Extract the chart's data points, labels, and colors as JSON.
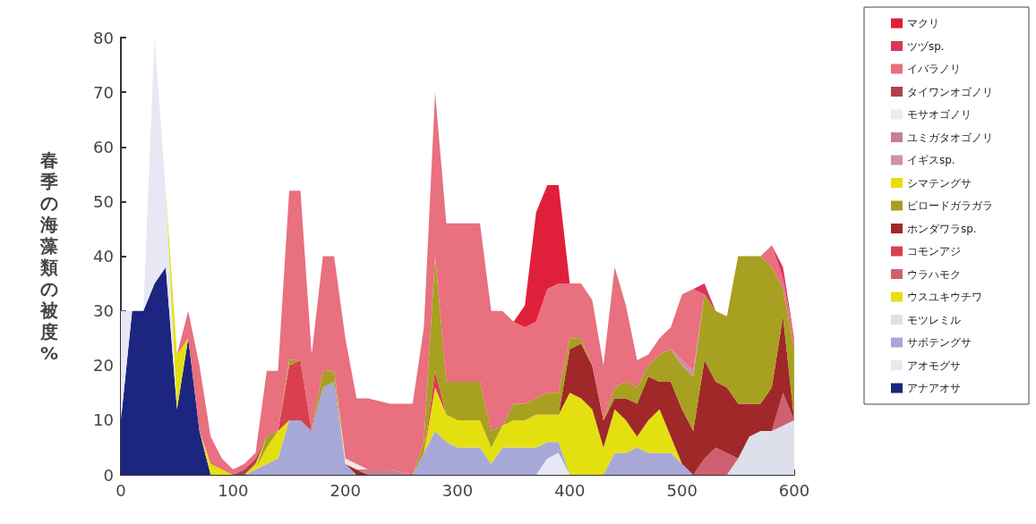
{
  "chart_data": {
    "type": "area",
    "stacked": true,
    "ylabel": "春季の海藻類の被度%",
    "xlim": [
      0,
      600
    ],
    "xticks": [
      0,
      100,
      200,
      300,
      400,
      500,
      600
    ],
    "ylim": [
      0,
      80
    ],
    "yticks": [
      0,
      10,
      20,
      30,
      40,
      50,
      60,
      70,
      80
    ],
    "grid": false,
    "legend": "right",
    "marker": "none",
    "x": [
      0,
      10,
      20,
      30,
      40,
      50,
      60,
      70,
      80,
      90,
      100,
      110,
      120,
      130,
      140,
      150,
      160,
      170,
      180,
      190,
      200,
      210,
      220,
      240,
      260,
      270,
      280,
      290,
      300,
      320,
      330,
      340,
      350,
      360,
      370,
      380,
      390,
      400,
      410,
      420,
      430,
      440,
      450,
      460,
      470,
      480,
      490,
      500,
      510,
      520,
      530,
      540,
      550,
      560,
      570,
      580,
      590,
      600
    ],
    "series": [
      {
        "name": "アナアオサ",
        "color": "#1c2580",
        "values": [
          10,
          30,
          30,
          35,
          38,
          12,
          25,
          8,
          0,
          null,
          null,
          null,
          null,
          null,
          null,
          null,
          null,
          null,
          null,
          null,
          null,
          null,
          null,
          null,
          null,
          null,
          null,
          null,
          null,
          null,
          null,
          null,
          null,
          null,
          null,
          null,
          null,
          null,
          null,
          null,
          null,
          null,
          null,
          null,
          null,
          null,
          null,
          null,
          null,
          null,
          null,
          null,
          null,
          null,
          null,
          null,
          null,
          null
        ]
      },
      {
        "name": "アオモグサ",
        "color": "#e8e8f4",
        "values": [
          20,
          0,
          0,
          45,
          14,
          0,
          null,
          null,
          null,
          null,
          null,
          null,
          null,
          null,
          null,
          null,
          null,
          null,
          null,
          null,
          null,
          null,
          null,
          null,
          null,
          null,
          null,
          null,
          null,
          null,
          null,
          null,
          null,
          null,
          0,
          3,
          4,
          0,
          null,
          null,
          null,
          null,
          null,
          null,
          null,
          null,
          null,
          null,
          null,
          null,
          null,
          null,
          null,
          null,
          null,
          null,
          null,
          null
        ]
      },
      {
        "name": "サボテングサ",
        "color": "#a8a8d8",
        "values": [
          null,
          null,
          null,
          null,
          null,
          null,
          null,
          null,
          null,
          null,
          null,
          0,
          1,
          2,
          3,
          10,
          10,
          8,
          16,
          17,
          2,
          0,
          null,
          null,
          0,
          4,
          8,
          6,
          5,
          5,
          2,
          5,
          5,
          5,
          5,
          3,
          2,
          0,
          null,
          null,
          0,
          4,
          4,
          5,
          4,
          4,
          4,
          2,
          0,
          null,
          null,
          null,
          null,
          null,
          null,
          null,
          null,
          null
        ]
      },
      {
        "name": "モツレミル",
        "color": "#dde0ea",
        "values": [
          null,
          null,
          null,
          null,
          null,
          null,
          null,
          null,
          null,
          null,
          null,
          null,
          null,
          null,
          null,
          null,
          null,
          null,
          null,
          null,
          null,
          null,
          null,
          null,
          null,
          null,
          null,
          null,
          null,
          null,
          null,
          null,
          null,
          null,
          null,
          null,
          null,
          null,
          null,
          null,
          null,
          null,
          null,
          null,
          null,
          null,
          null,
          null,
          null,
          null,
          null,
          0,
          3,
          7,
          8,
          8,
          9,
          10
        ]
      },
      {
        "name": "ウスユキウチワ",
        "color": "#e4e010",
        "values": [
          null,
          null,
          null,
          null,
          0,
          10,
          0,
          0,
          1,
          0,
          null,
          null,
          0,
          3,
          5,
          0,
          null,
          null,
          null,
          null,
          null,
          null,
          null,
          null,
          null,
          0,
          8,
          5,
          5,
          5,
          3,
          4,
          5,
          5,
          6,
          5,
          5,
          15,
          14,
          12,
          5,
          8,
          6,
          2,
          6,
          8,
          3,
          0,
          null,
          null,
          null,
          null,
          null,
          null,
          null,
          null,
          null,
          null
        ]
      },
      {
        "name": "ウラハモク",
        "color": "#d06070",
        "values": [
          null,
          null,
          null,
          null,
          null,
          null,
          null,
          null,
          null,
          null,
          null,
          null,
          null,
          null,
          null,
          null,
          null,
          null,
          null,
          null,
          null,
          null,
          null,
          null,
          null,
          null,
          null,
          null,
          null,
          null,
          null,
          null,
          null,
          null,
          null,
          null,
          null,
          null,
          null,
          null,
          null,
          null,
          null,
          null,
          null,
          null,
          null,
          null,
          0,
          3,
          5,
          4,
          0,
          null,
          null,
          0,
          6,
          0
        ]
      },
      {
        "name": "コモンアジ",
        "color": "#d84050",
        "values": [
          null,
          null,
          null,
          null,
          null,
          null,
          null,
          null,
          null,
          null,
          null,
          null,
          null,
          null,
          0,
          10,
          11,
          0,
          null,
          null,
          null,
          null,
          null,
          null,
          null,
          0,
          3,
          0,
          null,
          null,
          null,
          null,
          null,
          null,
          null,
          null,
          null,
          null,
          null,
          null,
          null,
          null,
          null,
          null,
          null,
          null,
          null,
          null,
          null,
          null,
          null,
          null,
          null,
          null,
          null,
          null,
          null,
          null
        ]
      },
      {
        "name": "ホンダワラsp.",
        "color": "#a02828",
        "values": [
          null,
          null,
          null,
          null,
          null,
          null,
          null,
          null,
          null,
          null,
          null,
          null,
          null,
          null,
          null,
          null,
          null,
          null,
          null,
          null,
          0,
          1,
          0,
          null,
          null,
          null,
          null,
          null,
          null,
          null,
          null,
          null,
          null,
          null,
          null,
          null,
          0,
          8,
          10,
          8,
          5,
          2,
          4,
          6,
          8,
          5,
          10,
          10,
          8,
          18,
          12,
          12,
          10,
          6,
          5,
          8,
          14,
          0
        ]
      },
      {
        "name": "ビロードガラガラ",
        "color": "#a8a020",
        "values": [
          null,
          null,
          null,
          null,
          null,
          null,
          null,
          null,
          null,
          null,
          null,
          null,
          0,
          2,
          0,
          1,
          0,
          0,
          3,
          2,
          0,
          null,
          null,
          null,
          0,
          2,
          21,
          6,
          7,
          7,
          3,
          0,
          3,
          3,
          3,
          4,
          4,
          2,
          1,
          0,
          0,
          2,
          3,
          3,
          2,
          5,
          6,
          8,
          10,
          12,
          13,
          13,
          27,
          27,
          27,
          22,
          5,
          13
        ]
      },
      {
        "name": "シマテングサ",
        "color": "#e8e000",
        "values": [
          null,
          null,
          null,
          null,
          null,
          null,
          null,
          0,
          1,
          1,
          0,
          0,
          1,
          0,
          null,
          null,
          null,
          null,
          null,
          null,
          null,
          null,
          null,
          null,
          null,
          null,
          null,
          null,
          null,
          null,
          null,
          null,
          null,
          null,
          null,
          null,
          null,
          null,
          null,
          null,
          null,
          null,
          null,
          null,
          null,
          null,
          null,
          null,
          null,
          null,
          null,
          null,
          null,
          null,
          null,
          null,
          null,
          null
        ]
      },
      {
        "name": "イギスsp.",
        "color": "#d090a8",
        "values": [
          null,
          null,
          null,
          null,
          null,
          null,
          null,
          null,
          null,
          null,
          null,
          null,
          null,
          null,
          null,
          null,
          null,
          null,
          null,
          null,
          null,
          null,
          null,
          null,
          null,
          null,
          null,
          null,
          null,
          null,
          null,
          null,
          null,
          null,
          null,
          null,
          null,
          null,
          null,
          null,
          null,
          null,
          null,
          null,
          null,
          null,
          0,
          1,
          1,
          0,
          null,
          null,
          null,
          null,
          null,
          null,
          null,
          null
        ]
      },
      {
        "name": "ユミガタオゴノリ",
        "color": "#c88090",
        "values": [
          null,
          null,
          null,
          null,
          null,
          null,
          null,
          null,
          null,
          null,
          null,
          null,
          null,
          null,
          null,
          null,
          null,
          null,
          null,
          null,
          null,
          0,
          1,
          1,
          0,
          null,
          null,
          null,
          null,
          null,
          null,
          null,
          null,
          null,
          null,
          null,
          null,
          null,
          null,
          null,
          null,
          null,
          null,
          null,
          null,
          null,
          null,
          null,
          null,
          null,
          null,
          null,
          null,
          null,
          null,
          null,
          null,
          null
        ]
      },
      {
        "name": "モサオゴノリ",
        "color": "#f4e8ea",
        "values": [
          null,
          null,
          null,
          null,
          null,
          null,
          null,
          null,
          null,
          null,
          null,
          null,
          null,
          null,
          null,
          null,
          null,
          null,
          null,
          0,
          1,
          1,
          0,
          null,
          null,
          null,
          null,
          null,
          null,
          null,
          null,
          null,
          null,
          null,
          null,
          null,
          null,
          null,
          null,
          null,
          null,
          null,
          null,
          null,
          null,
          null,
          null,
          null,
          null,
          null,
          null,
          null,
          null,
          null,
          null,
          null,
          null,
          null
        ]
      },
      {
        "name": "タイワンオゴノリ",
        "color": "#b04050",
        "values": [
          null,
          null,
          null,
          null,
          null,
          null,
          null,
          null,
          null,
          null,
          0,
          1,
          1,
          0,
          null,
          null,
          null,
          null,
          null,
          null,
          null,
          null,
          null,
          null,
          null,
          null,
          null,
          null,
          null,
          null,
          null,
          null,
          null,
          null,
          null,
          null,
          null,
          null,
          null,
          null,
          null,
          null,
          null,
          null,
          null,
          null,
          null,
          null,
          null,
          null,
          null,
          null,
          null,
          null,
          null,
          null,
          null,
          null
        ]
      },
      {
        "name": "イバラノリ",
        "color": "#e8707f",
        "values": [
          null,
          null,
          null,
          null,
          null,
          0,
          5,
          12,
          5,
          2,
          1,
          1,
          1,
          12,
          11,
          31,
          31,
          14,
          21,
          21,
          22,
          12,
          13,
          12,
          13,
          21,
          30,
          29,
          29,
          29,
          22,
          21,
          15,
          14,
          14,
          19,
          20,
          10,
          10,
          12,
          10,
          22,
          14,
          5,
          2,
          3,
          4,
          12,
          15,
          0,
          null,
          null,
          null,
          null,
          0,
          4,
          2,
          2
        ]
      },
      {
        "name": "ツヅsp.",
        "color": "#d9365a",
        "values": [
          null,
          null,
          null,
          null,
          null,
          null,
          null,
          null,
          null,
          null,
          null,
          null,
          null,
          null,
          null,
          null,
          null,
          null,
          null,
          null,
          null,
          null,
          null,
          null,
          null,
          null,
          null,
          null,
          null,
          null,
          null,
          null,
          null,
          null,
          null,
          null,
          null,
          null,
          null,
          null,
          null,
          null,
          null,
          null,
          null,
          null,
          null,
          null,
          0,
          2,
          0,
          null,
          null,
          null,
          null,
          0,
          2,
          0
        ]
      },
      {
        "name": "マクリ",
        "color": "#e0203a",
        "values": [
          null,
          null,
          null,
          null,
          null,
          null,
          null,
          null,
          null,
          null,
          null,
          null,
          null,
          null,
          null,
          null,
          null,
          null,
          null,
          null,
          null,
          null,
          null,
          null,
          null,
          null,
          null,
          null,
          null,
          null,
          null,
          null,
          0,
          4,
          20,
          19,
          18,
          0,
          null,
          null,
          null,
          null,
          null,
          null,
          null,
          null,
          null,
          null,
          null,
          null,
          null,
          null,
          null,
          null,
          null,
          null,
          null,
          null
        ]
      }
    ]
  }
}
